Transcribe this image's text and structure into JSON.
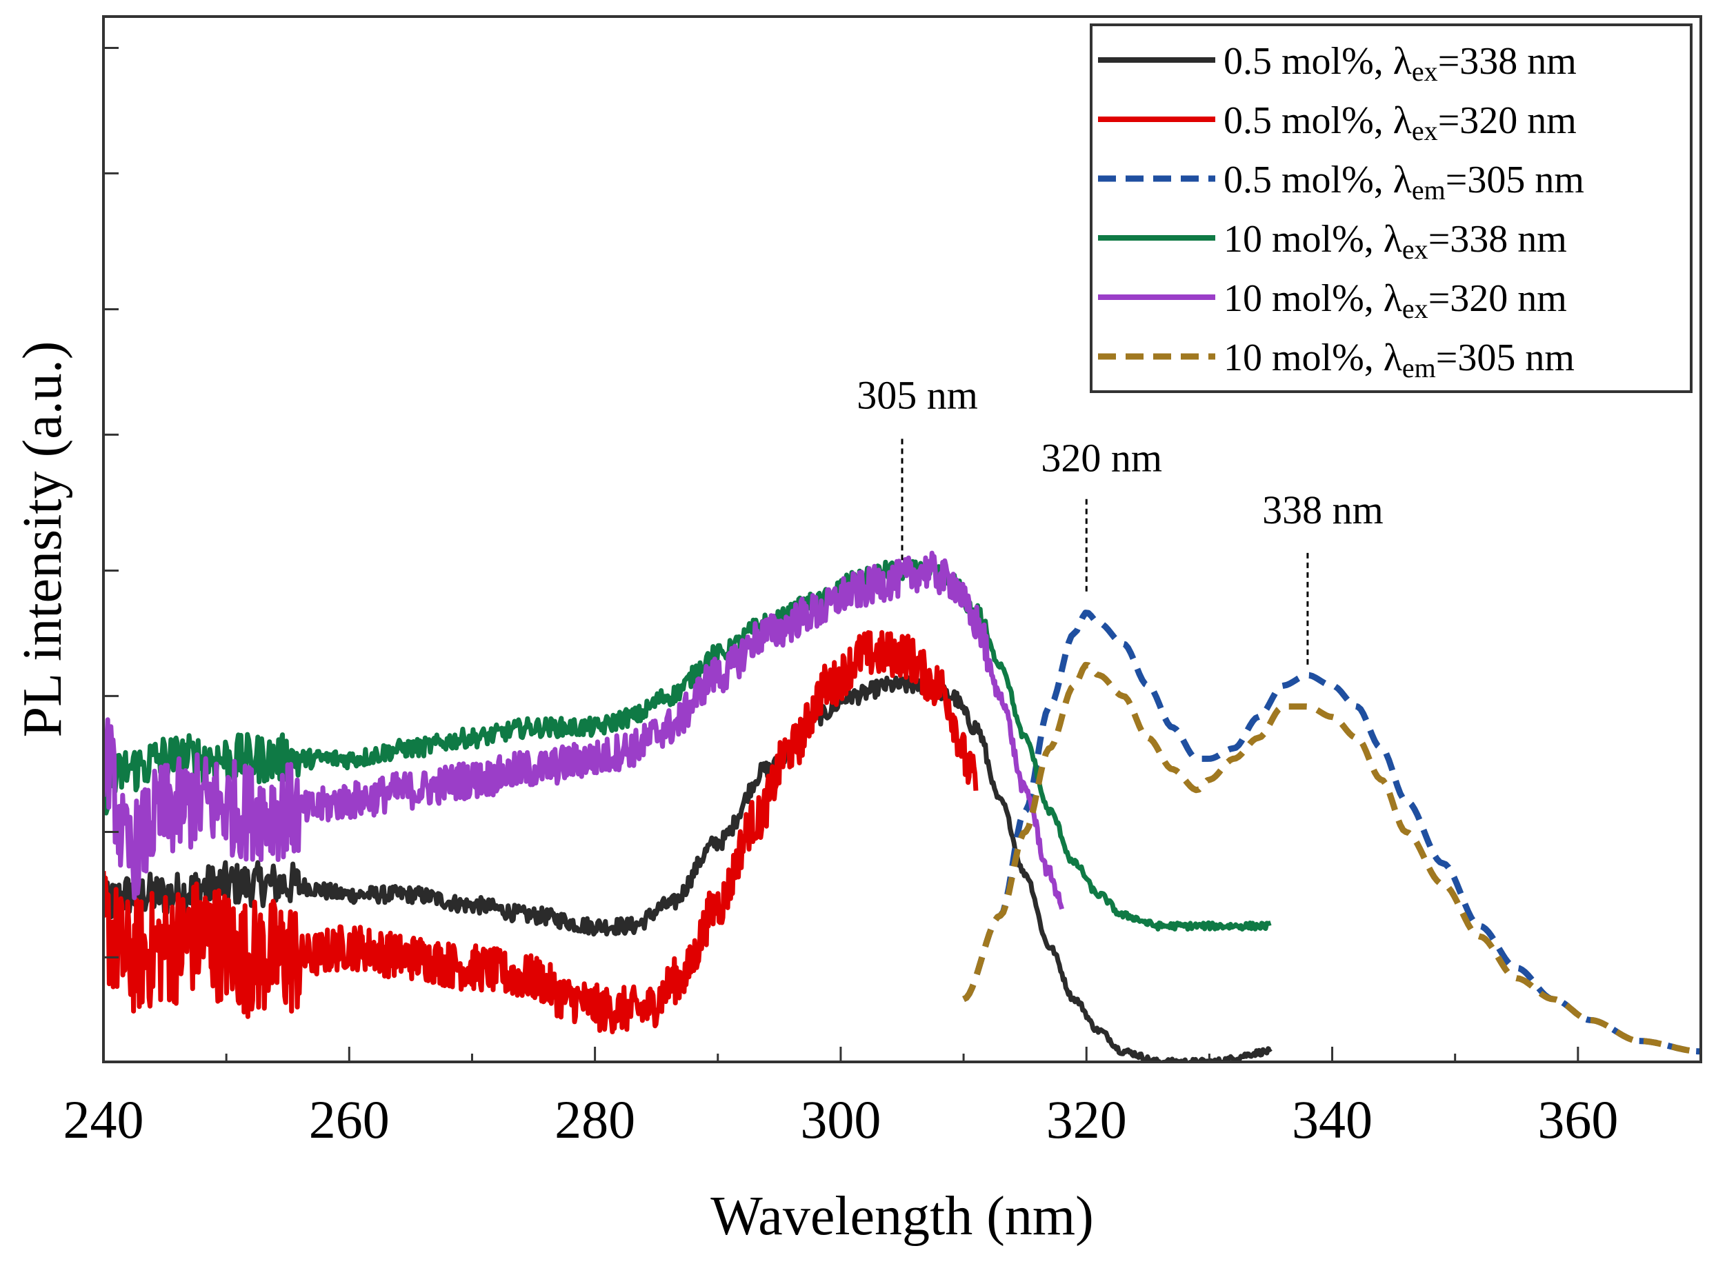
{
  "chart_data": {
    "type": "line",
    "title": "",
    "xlabel": "Wavelength (nm)",
    "ylabel": "PL intensity (a.u.)",
    "xlim": [
      240,
      370
    ],
    "ylim": [
      0,
      1
    ],
    "x_ticks": [
      240,
      260,
      280,
      300,
      320,
      340,
      360
    ],
    "x_tick_labels": [
      "240",
      "260",
      "280",
      "300",
      "320",
      "340",
      "360"
    ],
    "y_tick_values": [
      0.1,
      0.22,
      0.35,
      0.47,
      0.6,
      0.72,
      0.85,
      0.97
    ],
    "y_tick_labels_shown": false,
    "grid": false,
    "legend_position": "top-right",
    "series": [
      {
        "name": "0.5 mol%, λex=338 nm",
        "label_main": "0.5 mol%, λ",
        "label_sub": "ex",
        "label_tail": "=338 nm",
        "color": "#2b2b2b",
        "dash": "solid",
        "noise": 0.008,
        "x": [
          240,
          242,
          245,
          250,
          255,
          260,
          265,
          270,
          275,
          280,
          283,
          286,
          290,
          294,
          298,
          301,
          304,
          307,
          309,
          311,
          313,
          315,
          317,
          319,
          321,
          323,
          326,
          330,
          335
        ],
        "y": [
          0.15,
          0.16,
          0.16,
          0.17,
          0.17,
          0.16,
          0.16,
          0.15,
          0.14,
          0.13,
          0.13,
          0.15,
          0.21,
          0.28,
          0.33,
          0.35,
          0.36,
          0.36,
          0.35,
          0.32,
          0.25,
          0.18,
          0.11,
          0.06,
          0.03,
          0.01,
          0.0,
          0.0,
          0.01
        ]
      },
      {
        "name": "0.5 mol%, λex=320 nm",
        "label_main": "0.5 mol%, λ",
        "label_sub": "ex",
        "label_tail": "=320 nm",
        "color": "#e00000",
        "dash": "solid",
        "noise": 0.022,
        "x": [
          240,
          242,
          245,
          248,
          252,
          256,
          260,
          265,
          270,
          275,
          278,
          281,
          284,
          287,
          290,
          293,
          296,
          299,
          302,
          305,
          308,
          311
        ],
        "y": [
          0.13,
          0.1,
          0.11,
          0.12,
          0.1,
          0.1,
          0.11,
          0.1,
          0.09,
          0.08,
          0.06,
          0.05,
          0.05,
          0.08,
          0.15,
          0.23,
          0.3,
          0.36,
          0.39,
          0.39,
          0.36,
          0.27
        ]
      },
      {
        "name": "0.5 mol%, λem=305 nm",
        "label_main": "0.5 mol%, λ",
        "label_sub": "em",
        "label_tail": "=305 nm",
        "color": "#1f4fa0",
        "dash": "dashed",
        "noise": 0.0,
        "x": [
          310,
          313,
          315,
          317,
          319,
          320,
          321,
          323,
          325,
          327,
          329,
          330,
          332,
          334,
          336,
          338,
          340,
          342,
          344,
          346,
          349,
          352,
          355,
          358,
          361,
          365,
          370
        ],
        "y": [
          0.06,
          0.14,
          0.24,
          0.34,
          0.41,
          0.43,
          0.42,
          0.4,
          0.36,
          0.32,
          0.29,
          0.29,
          0.3,
          0.33,
          0.36,
          0.37,
          0.36,
          0.34,
          0.3,
          0.25,
          0.19,
          0.13,
          0.09,
          0.06,
          0.04,
          0.02,
          0.01
        ]
      },
      {
        "name": "10 mol%, λex=338 nm",
        "label_main": "10 mol%, λ",
        "label_sub": "ex",
        "label_tail": "=338 nm",
        "color": "#0f7a45",
        "dash": "solid",
        "noise": 0.009,
        "x": [
          240,
          242,
          245,
          250,
          255,
          260,
          265,
          270,
          275,
          280,
          283,
          286,
          290,
          294,
          298,
          301,
          304,
          307,
          309,
          311,
          313,
          315,
          317,
          319,
          321,
          323,
          326,
          330,
          335
        ],
        "y": [
          0.26,
          0.28,
          0.29,
          0.29,
          0.29,
          0.29,
          0.3,
          0.31,
          0.32,
          0.32,
          0.33,
          0.35,
          0.39,
          0.42,
          0.44,
          0.46,
          0.47,
          0.47,
          0.46,
          0.43,
          0.38,
          0.31,
          0.24,
          0.19,
          0.16,
          0.14,
          0.13,
          0.13,
          0.13
        ]
      },
      {
        "name": "10 mol%, λex=320 nm",
        "label_main": "10 mol%, λ",
        "label_sub": "ex",
        "label_tail": "=320 nm",
        "color": "#9b3ec8",
        "dash": "solid",
        "noise": 0.018,
        "x": [
          240,
          242,
          245,
          248,
          252,
          256,
          260,
          265,
          270,
          275,
          280,
          283,
          286,
          290,
          294,
          298,
          301,
          304,
          307,
          309,
          311,
          313,
          315,
          317,
          318
        ],
        "y": [
          0.3,
          0.2,
          0.24,
          0.25,
          0.24,
          0.24,
          0.25,
          0.26,
          0.27,
          0.28,
          0.29,
          0.3,
          0.32,
          0.37,
          0.41,
          0.43,
          0.45,
          0.46,
          0.47,
          0.46,
          0.42,
          0.35,
          0.26,
          0.18,
          0.15
        ]
      },
      {
        "name": "10 mol%, λem=305 nm",
        "label_main": "10 mol%, λ",
        "label_sub": "em",
        "label_tail": "=305 nm",
        "color": "#a07820",
        "dash": "dashed",
        "noise": 0.0,
        "x": [
          310,
          313,
          315,
          317,
          319,
          320,
          321,
          323,
          325,
          327,
          329,
          330,
          332,
          334,
          336,
          338,
          340,
          342,
          344,
          346,
          349,
          352,
          355,
          358,
          361,
          365,
          370
        ],
        "y": [
          0.06,
          0.14,
          0.22,
          0.3,
          0.36,
          0.38,
          0.37,
          0.35,
          0.31,
          0.28,
          0.26,
          0.27,
          0.29,
          0.31,
          0.34,
          0.34,
          0.33,
          0.31,
          0.27,
          0.22,
          0.17,
          0.12,
          0.08,
          0.06,
          0.04,
          0.02,
          0.01
        ]
      }
    ],
    "annotations": [
      {
        "text": "305 nm",
        "x": 305,
        "y_from": 0.48,
        "y_to": 0.6
      },
      {
        "text": "320 nm",
        "x": 320,
        "y_from": 0.45,
        "y_to": 0.54
      },
      {
        "text": "338 nm",
        "x": 338,
        "y_from": 0.38,
        "y_to": 0.49
      }
    ]
  }
}
